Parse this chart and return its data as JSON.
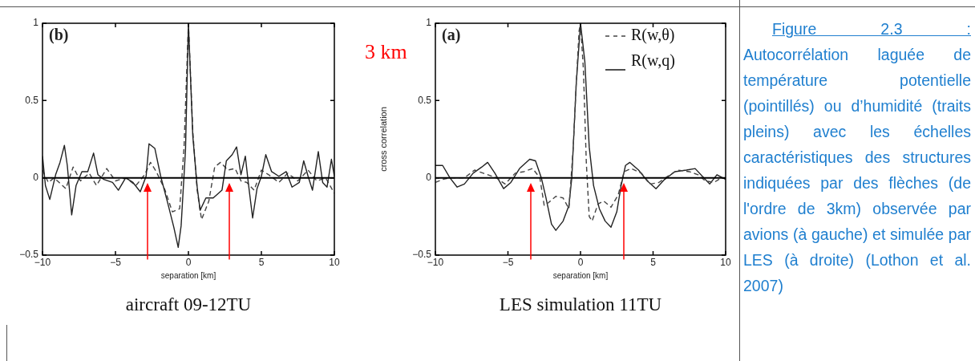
{
  "chart_data": [
    {
      "type": "line",
      "title": "(b)",
      "xlabel": "separation [km]",
      "xlim": [
        -10,
        10
      ],
      "xticks": [
        -10,
        -5,
        0,
        5,
        10
      ],
      "ylim": [
        -0.5,
        1
      ],
      "yticks": [
        -0.5,
        0,
        0.5,
        1
      ],
      "grid": false,
      "legend": false,
      "marker": "none",
      "ref_lines": [
        {
          "axis": "y",
          "value": 0,
          "color": "#000000"
        }
      ],
      "annotations": [
        "aircraft 09-12TU"
      ],
      "series": [
        {
          "color": "#222222",
          "line_style": "solid",
          "x": [
            -10,
            -9.8,
            -9.5,
            -9.1,
            -8.8,
            -8.5,
            -8.3,
            -8,
            -7.7,
            -7.3,
            -6.9,
            -6.5,
            -6.2,
            -5.8,
            -5.2,
            -4.8,
            -4.3,
            -3.8,
            -3.3,
            -2.9,
            -2.7,
            -2.3,
            -1.9,
            -1.4,
            -1,
            -0.7,
            -0.5,
            -0.2,
            0,
            0.3,
            0.6,
            0.8,
            1.2,
            1.7,
            2.3,
            2.6,
            3,
            3.3,
            3.6,
            3.9,
            4.1,
            4.4,
            4.7,
            5,
            5.3,
            5.7,
            6.2,
            6.7,
            7.1,
            7.6,
            7.9,
            8.2,
            8.5,
            8.9,
            9.2,
            9.5,
            9.8,
            10
          ],
          "values": [
            0.14,
            -0.05,
            -0.14,
            0.02,
            0.1,
            0.21,
            0.08,
            -0.24,
            -0.05,
            0.04,
            0.04,
            0.16,
            0.02,
            -0.01,
            -0.03,
            -0.08,
            0,
            -0.03,
            -0.09,
            0.01,
            0.22,
            0.19,
            0.01,
            -0.17,
            -0.32,
            -0.45,
            -0.31,
            0.18,
            1,
            0.27,
            -0.06,
            -0.21,
            -0.13,
            -0.13,
            -0.08,
            0.11,
            0.15,
            0.2,
            0.02,
            0.14,
            -0.03,
            -0.26,
            -0.07,
            0.01,
            0.15,
            0.04,
            0.01,
            0.04,
            -0.06,
            -0.03,
            0.11,
            0.01,
            -0.08,
            0.17,
            -0.03,
            -0.06,
            0.12,
            0.01
          ]
        },
        {
          "color": "#444444",
          "line_style": "dashed",
          "x": [
            -10,
            -9.6,
            -9.2,
            -8.4,
            -7.9,
            -7.4,
            -6.8,
            -6.3,
            -5.6,
            -5,
            -4.3,
            -3.6,
            -3,
            -2.6,
            -2.2,
            -1.6,
            -1.1,
            -0.6,
            -0.3,
            0,
            0.3,
            0.6,
            0.9,
            1.4,
            1.8,
            2.2,
            2.7,
            3.2,
            3.6,
            4,
            4.5,
            5,
            5.5,
            6.2,
            6.8,
            7.5,
            8.2,
            8.8,
            9.4,
            10
          ],
          "values": [
            0.05,
            -0.03,
            0,
            -0.07,
            0.07,
            -0.02,
            0.03,
            -0.05,
            0.06,
            -0.02,
            0,
            -0.05,
            0.02,
            0.1,
            0.04,
            -0.08,
            -0.22,
            -0.2,
            0.2,
            1,
            0.3,
            -0.08,
            -0.27,
            -0.15,
            0.07,
            0.1,
            0.05,
            0.06,
            -0.02,
            -0.03,
            -0.08,
            0.05,
            0.02,
            -0.03,
            0.03,
            -0.02,
            0.05,
            -0.02,
            0,
            -0.1
          ]
        }
      ]
    },
    {
      "type": "line",
      "title": "(a)",
      "xlabel": "separation [km]",
      "ylabel": "cross correlation",
      "xlim": [
        -10,
        10
      ],
      "xticks": [
        -10,
        -5,
        0,
        5,
        10
      ],
      "ylim": [
        -0.5,
        1
      ],
      "yticks": [
        -0.5,
        0,
        0.5,
        1
      ],
      "grid": false,
      "legend": "top right",
      "marker": "none",
      "ref_lines": [
        {
          "axis": "y",
          "value": 0,
          "color": "#000000"
        }
      ],
      "annotations": [
        "3 km",
        "LES simulation 11TU"
      ],
      "series": [
        {
          "name": "R(w,θ)",
          "color": "#444444",
          "line_style": "dashed",
          "x": [
            -10,
            -9.5,
            -9,
            -8,
            -7.3,
            -6.7,
            -5.8,
            -5.2,
            -4.5,
            -3.9,
            -3.3,
            -2.8,
            -2.5,
            -2.2,
            -1.7,
            -1.2,
            -0.8,
            -0.5,
            -0.3,
            -0.1,
            0,
            0.2,
            0.4,
            0.6,
            0.8,
            1.2,
            1.6,
            2.1,
            2.6,
            3,
            3.5,
            4.2,
            4.8,
            5.4,
            6,
            6.7,
            7.5,
            8.1,
            8.6,
            9.2,
            9.7,
            10
          ],
          "values": [
            -0.03,
            -0.01,
            0,
            0,
            0.05,
            0.03,
            0,
            -0.04,
            0.03,
            0.04,
            0.06,
            0,
            -0.18,
            -0.16,
            -0.12,
            -0.13,
            -0.2,
            0.2,
            0.6,
            0.95,
            1,
            0.7,
            0.1,
            -0.25,
            -0.28,
            -0.17,
            -0.15,
            -0.19,
            -0.11,
            0.04,
            0.06,
            0.03,
            -0.04,
            -0.03,
            0.01,
            0.05,
            0.04,
            0.02,
            -0.02,
            -0.03,
            0,
            0
          ]
        },
        {
          "name": "R(w,q)",
          "color": "#222222",
          "line_style": "solid",
          "x": [
            -10,
            -9.5,
            -9,
            -8.5,
            -8,
            -7.4,
            -6.8,
            -6.4,
            -5.9,
            -5.3,
            -4.8,
            -4.2,
            -3.5,
            -3.1,
            -2.7,
            -2.4,
            -2,
            -1.7,
            -1.2,
            -0.8,
            -0.6,
            -0.3,
            0,
            0.3,
            0.6,
            0.9,
            1.3,
            1.7,
            2.1,
            2.5,
            2.8,
            3.1,
            3.4,
            4,
            4.6,
            5.2,
            5.8,
            6.5,
            7.3,
            7.9,
            8.5,
            8.9,
            9.4,
            10
          ],
          "values": [
            0.08,
            0.08,
            0,
            -0.06,
            -0.04,
            0.03,
            0.07,
            0.1,
            0.03,
            -0.07,
            -0.03,
            0.06,
            0.12,
            0.11,
            0,
            -0.12,
            -0.3,
            -0.34,
            -0.28,
            -0.18,
            0,
            0.6,
            1,
            0.75,
            0.2,
            -0.05,
            -0.2,
            -0.28,
            -0.32,
            -0.22,
            -0.05,
            0.08,
            0.1,
            0.05,
            -0.02,
            -0.07,
            -0.01,
            0.04,
            0.05,
            0.06,
            0,
            -0.04,
            0.02,
            -0.01
          ]
        }
      ]
    },
    {
      "type": "other",
      "title": "Figure 2.3 :",
      "annotations": [
        "Autocorrélation laguée de température potentielle (pointillés) ou d’humidité (traits pleins) avec les échelles caractéristiques des structures indiquées par des flèches (de l'ordre de 3km) observée par avions (à gauche) et simulée par LES (à droite) (Lothon et al. 2007)"
      ]
    }
  ]
}
